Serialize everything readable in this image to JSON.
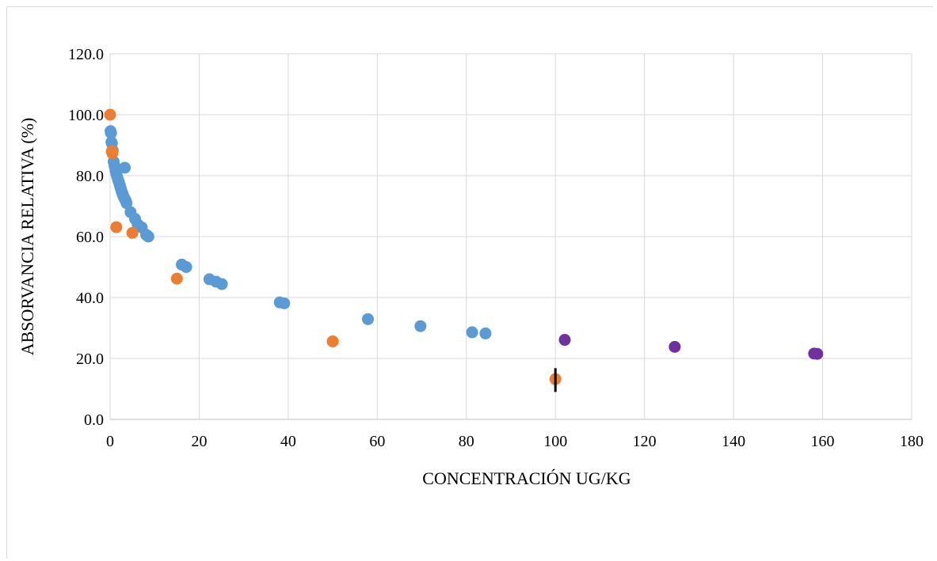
{
  "chart_data": {
    "type": "scatter",
    "title": "",
    "xlabel": "CONCENTRACIÓN UG/KG",
    "ylabel": "ABSORVANCIA RELATIVA (%)",
    "xlim": [
      0,
      180
    ],
    "ylim": [
      0,
      120
    ],
    "x_ticks": [
      "0",
      "20",
      "40",
      "60",
      "80",
      "100",
      "120",
      "140",
      "160",
      "180"
    ],
    "y_ticks": [
      "0.0",
      "20.0",
      "40.0",
      "60.0",
      "80.0",
      "100.0",
      "120.0"
    ],
    "grid": true,
    "legend": "none",
    "series": [
      {
        "color": "#5b9bd5",
        "points": [
          [
            0.1,
            94.6
          ],
          [
            0.2,
            94.0
          ],
          [
            0.3,
            91.0
          ],
          [
            0.4,
            90.6
          ],
          [
            0.6,
            88.2
          ],
          [
            0.8,
            84.6
          ],
          [
            1.0,
            83.2
          ],
          [
            1.2,
            81.8
          ],
          [
            1.4,
            80.6
          ],
          [
            1.6,
            79.6
          ],
          [
            1.8,
            78.6
          ],
          [
            2.0,
            77.8
          ],
          [
            2.2,
            76.8
          ],
          [
            2.4,
            75.8
          ],
          [
            2.6,
            74.8
          ],
          [
            2.8,
            74.0
          ],
          [
            3.0,
            73.2
          ],
          [
            3.2,
            72.6
          ],
          [
            3.3,
            82.6
          ],
          [
            3.5,
            71.8
          ],
          [
            3.7,
            71.0
          ],
          [
            4.6,
            68.0
          ],
          [
            5.6,
            65.8
          ],
          [
            6.2,
            64.0
          ],
          [
            7.1,
            63.0
          ],
          [
            8.1,
            60.6
          ],
          [
            8.6,
            60.0
          ],
          [
            16.1,
            50.8
          ],
          [
            17.1,
            50.0
          ],
          [
            22.3,
            46.0
          ],
          [
            23.8,
            45.2
          ],
          [
            25.1,
            44.4
          ],
          [
            38.1,
            38.4
          ],
          [
            39.1,
            38.1
          ],
          [
            57.9,
            32.9
          ],
          [
            69.7,
            30.6
          ],
          [
            81.3,
            28.6
          ],
          [
            84.3,
            28.2
          ]
        ]
      },
      {
        "color": "#ed7d31",
        "points": [
          [
            0.0,
            100.0
          ],
          [
            0.4,
            88.0
          ],
          [
            0.5,
            87.4
          ],
          [
            1.4,
            63.1
          ],
          [
            5.0,
            61.2
          ],
          [
            15.0,
            46.2
          ],
          [
            50.0,
            25.6
          ],
          [
            100.0,
            13.2
          ]
        ]
      },
      {
        "color": "#7030a0",
        "points": [
          [
            102.1,
            26.1
          ],
          [
            126.8,
            23.8
          ],
          [
            158.1,
            21.6
          ],
          [
            158.8,
            21.5
          ]
        ]
      }
    ],
    "error_bars": [
      {
        "x": 100.0,
        "y_low": 9.0,
        "y_high": 16.8,
        "color": "#000000"
      }
    ]
  }
}
